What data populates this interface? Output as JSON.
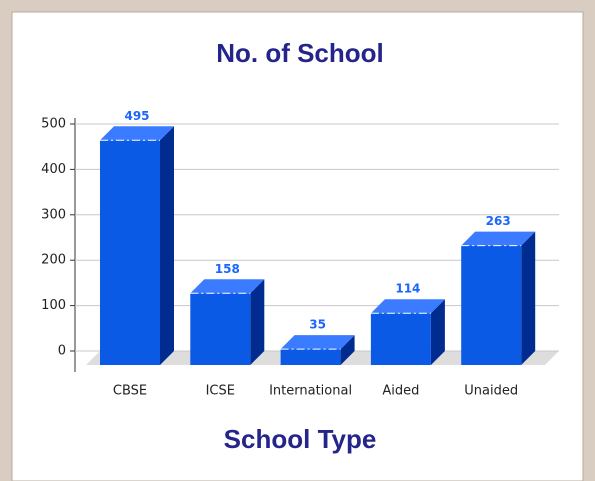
{
  "chart_data": {
    "type": "bar",
    "title": "No. of School",
    "x_label": "School Type",
    "categories": [
      "CBSE",
      "ICSE",
      "International",
      "Aided",
      "Unaided"
    ],
    "values": [
      495,
      158,
      35,
      114,
      263
    ],
    "color": "#0a5ae6",
    "ylim": [
      0,
      500
    ],
    "yticks": [
      0,
      100,
      200,
      300,
      400,
      500
    ],
    "grid": true
  }
}
